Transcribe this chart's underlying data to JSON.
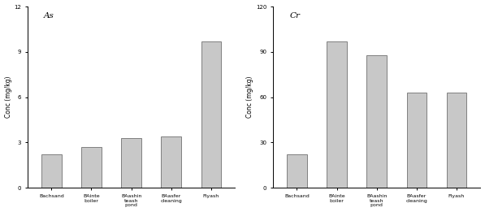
{
  "left_chart": {
    "title": "As",
    "categories": [
      "Bachsand",
      "BAinte\nboiler",
      "BAashin\nteash\npond",
      "BAasfer\ncleaning",
      "Flyash"
    ],
    "values": [
      2.2,
      2.7,
      3.3,
      3.4,
      9.7
    ],
    "ylabel": "Conc (mg/kg)",
    "ylim": [
      0,
      12
    ],
    "yticks": [
      0,
      3,
      6,
      9,
      12
    ]
  },
  "right_chart": {
    "title": "Cr",
    "categories": [
      "Bachsand",
      "BAinte\nboiler",
      "BAashin\nteash\npond",
      "BAasfer\ncleaning",
      "Flyash"
    ],
    "values": [
      22,
      97,
      88,
      63,
      63
    ],
    "ylabel": "Conc (mg/kg)",
    "ylim": [
      0,
      120
    ],
    "yticks": [
      0,
      30,
      60,
      90,
      120
    ]
  },
  "bar_color": "#c8c8c8",
  "bar_edge_color": "#707070",
  "bar_width": 0.5,
  "title_fontsize": 7.5,
  "ylabel_fontsize": 5.5,
  "tick_fontsize": 5.0,
  "xtick_fontsize": 4.5
}
